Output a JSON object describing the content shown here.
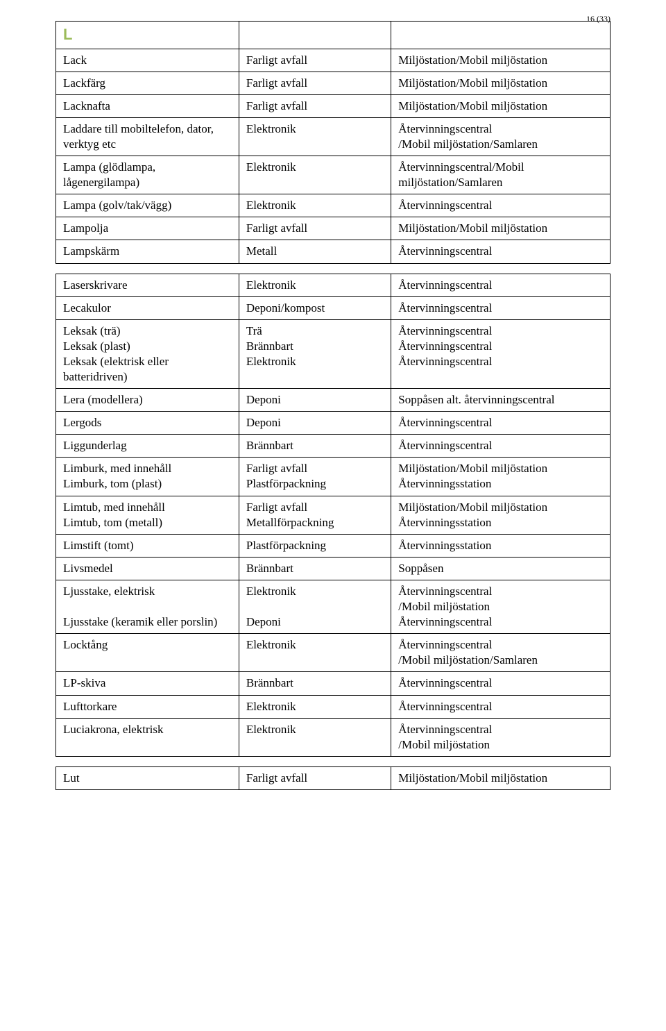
{
  "pageNumber": "16 (33)",
  "sectionLetter": "L",
  "colors": {
    "letter": "#9bbb59",
    "border": "#000000",
    "text": "#000000",
    "background": "#ffffff"
  },
  "fonts": {
    "body": "Garamond, 'Times New Roman', serif",
    "letter": "Arial, sans-serif",
    "bodySize": 17,
    "letterSize": 22,
    "pageNumSize": 12
  },
  "layout": {
    "col1_width": "33%",
    "col2_width": "27%",
    "col3_width": "40%"
  },
  "tables": [
    {
      "rows": [
        [
          "Lack",
          "Farligt avfall",
          "Miljöstation/Mobil miljöstation"
        ],
        [
          "Lackfärg",
          "Farligt avfall",
          "Miljöstation/Mobil miljöstation"
        ],
        [
          "Lacknafta",
          "Farligt avfall",
          "Miljöstation/Mobil miljöstation"
        ],
        [
          "Laddare till mobiltelefon, dator, verktyg etc",
          "Elektronik",
          "Återvinningscentral\n/Mobil miljöstation/Samlaren"
        ],
        [
          "Lampa (glödlampa, lågenergilampa)",
          "Elektronik",
          "Återvinningscentral/Mobil miljöstation/Samlaren"
        ],
        [
          "Lampa (golv/tak/vägg)",
          "Elektronik",
          "Återvinningscentral"
        ],
        [
          "Lampolja",
          "Farligt avfall",
          "Miljöstation/Mobil miljöstation"
        ],
        [
          "Lampskärm",
          "Metall",
          "Återvinningscentral"
        ]
      ]
    },
    {
      "rows": [
        [
          "Laserskrivare",
          "Elektronik",
          "Återvinningscentral"
        ],
        [
          "Lecakulor",
          "Deponi/kompost",
          "Återvinningscentral"
        ],
        [
          "Leksak (trä)\nLeksak (plast)\nLeksak (elektrisk eller batteridriven)",
          "Trä\nBrännbart\nElektronik",
          "Återvinningscentral\nÅtervinningscentral\nÅtervinningscentral"
        ],
        [
          "Lera (modellera)",
          "Deponi",
          "Soppåsen alt. återvinningscentral"
        ],
        [
          "Lergods",
          "Deponi",
          "Återvinningscentral"
        ],
        [
          "Liggunderlag",
          "Brännbart",
          "Återvinningscentral"
        ],
        [
          "Limburk, med innehåll\nLimburk, tom (plast)",
          "Farligt avfall\nPlastförpackning",
          "Miljöstation/Mobil miljöstation\nÅtervinningsstation"
        ],
        [
          "Limtub, med innehåll\nLimtub, tom (metall)",
          "Farligt avfall\nMetallförpackning",
          "Miljöstation/Mobil miljöstation\nÅtervinningsstation"
        ],
        [
          "Limstift (tomt)",
          "Plastförpackning",
          "Återvinningsstation"
        ],
        [
          "Livsmedel",
          "Brännbart",
          "Soppåsen"
        ],
        [
          "Ljusstake, elektrisk\n\nLjusstake (keramik eller porslin)",
          "Elektronik\n\nDeponi",
          "Återvinningscentral\n/Mobil miljöstation\nÅtervinningscentral"
        ],
        [
          "Locktång",
          "Elektronik",
          "Återvinningscentral\n/Mobil miljöstation/Samlaren"
        ],
        [
          "LP-skiva",
          "Brännbart",
          "Återvinningscentral"
        ],
        [
          "Lufttorkare",
          "Elektronik",
          "Återvinningscentral"
        ],
        [
          "Luciakrona, elektrisk",
          "Elektronik",
          "Återvinningscentral\n/Mobil miljöstation"
        ]
      ]
    },
    {
      "rows": [
        [
          "Lut",
          "Farligt avfall",
          "Miljöstation/Mobil miljöstation"
        ]
      ]
    }
  ]
}
